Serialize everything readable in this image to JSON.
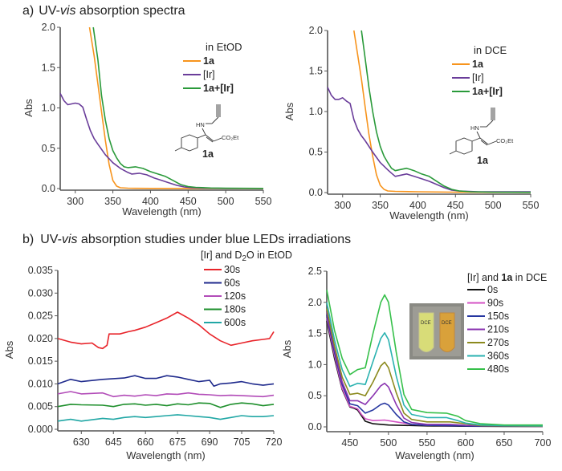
{
  "section_a_label": "a)",
  "section_a_title_pre": "UV-",
  "section_a_title_italic": "vis",
  "section_a_title_post": " absorption spectra",
  "section_b_label": "b)",
  "section_b_title_pre": "UV-",
  "section_b_title_italic": "vis",
  "section_b_title_post": " absorption studies under blue LEDs irradiations",
  "structure": {
    "label": "1a",
    "nh": "HN",
    "ester": "CO₂Et"
  },
  "inset_photo": {
    "tube_left_label": "DCE",
    "tube_right_label": "DCE",
    "tube_left_color": "#d8dc78",
    "tube_right_color": "#d9a13a"
  },
  "chart_data": [
    {
      "id": "a-left",
      "type": "line",
      "title": "",
      "legend_title": "in EtOD",
      "xlabel": "Wavelength (nm)",
      "ylabel": "Abs",
      "xlim": [
        280,
        550
      ],
      "ylim": [
        0,
        2.0
      ],
      "xticks": [
        300,
        350,
        400,
        450,
        500,
        550
      ],
      "yticks": [
        0.0,
        0.5,
        1.0,
        1.5,
        2.0
      ],
      "ytick_labels": [
        "0.0",
        "0.5",
        "1.0",
        "1.5",
        "2.0"
      ],
      "legend_position": "top-right",
      "series": [
        {
          "name": "1a",
          "bold": true,
          "color": "#f7941d",
          "x": [
            319,
            325,
            330,
            335,
            340,
            345,
            350,
            355,
            360,
            370,
            380,
            400,
            450,
            500,
            550
          ],
          "y": [
            2.0,
            1.65,
            1.3,
            0.95,
            0.6,
            0.3,
            0.1,
            0.03,
            0.01,
            0.005,
            0.003,
            0.002,
            0.001,
            0.001,
            0.0
          ]
        },
        {
          "name": "[Ir]",
          "bold": false,
          "color": "#6a3d9a",
          "x": [
            280,
            285,
            290,
            295,
            300,
            305,
            310,
            315,
            320,
            325,
            330,
            340,
            350,
            360,
            370,
            375,
            385,
            395,
            405,
            415,
            425,
            435,
            445,
            455,
            470,
            500,
            550
          ],
          "y": [
            1.18,
            1.09,
            1.04,
            1.05,
            1.06,
            1.05,
            1.01,
            0.86,
            0.72,
            0.62,
            0.55,
            0.42,
            0.32,
            0.25,
            0.2,
            0.18,
            0.19,
            0.17,
            0.13,
            0.1,
            0.07,
            0.04,
            0.02,
            0.01,
            0.005,
            0.002,
            0.002
          ]
        },
        {
          "name": "1a+[Ir]",
          "bold": true,
          "color": "#2a9a3a",
          "x": [
            324,
            330,
            335,
            340,
            345,
            350,
            355,
            360,
            365,
            370,
            380,
            390,
            400,
            410,
            420,
            430,
            440,
            450,
            460,
            480,
            500,
            550
          ],
          "y": [
            2.0,
            1.6,
            1.15,
            0.85,
            0.62,
            0.47,
            0.38,
            0.31,
            0.27,
            0.26,
            0.27,
            0.25,
            0.21,
            0.18,
            0.15,
            0.1,
            0.05,
            0.025,
            0.015,
            0.007,
            0.004,
            0.002
          ]
        }
      ]
    },
    {
      "id": "a-right",
      "type": "line",
      "title": "",
      "legend_title": "in DCE",
      "xlabel": "Wavelength (nm)",
      "ylabel": "Abs",
      "xlim": [
        280,
        550
      ],
      "ylim": [
        0,
        2.0
      ],
      "xticks": [
        300,
        350,
        400,
        450,
        500,
        550
      ],
      "yticks": [
        0.0,
        0.5,
        1.0,
        1.5,
        2.0
      ],
      "ytick_labels": [
        "0.0",
        "0.5",
        "1.0",
        "1.5",
        "2.0"
      ],
      "legend_position": "top-right",
      "series": [
        {
          "name": "1a",
          "bold": true,
          "color": "#f7941d",
          "x": [
            315,
            320,
            325,
            330,
            335,
            340,
            345,
            350,
            355,
            360,
            370,
            400,
            450,
            500,
            550
          ],
          "y": [
            2.0,
            1.7,
            1.4,
            1.05,
            0.72,
            0.45,
            0.22,
            0.09,
            0.04,
            0.02,
            0.015,
            0.01,
            0.005,
            0.003,
            0.002
          ]
        },
        {
          "name": "[Ir]",
          "bold": false,
          "color": "#6a3d9a",
          "x": [
            280,
            285,
            290,
            295,
            300,
            305,
            310,
            315,
            320,
            325,
            330,
            340,
            350,
            360,
            365,
            370,
            375,
            385,
            395,
            405,
            415,
            425,
            435,
            445,
            455,
            480,
            500,
            550
          ],
          "y": [
            1.3,
            1.2,
            1.15,
            1.15,
            1.17,
            1.13,
            1.1,
            0.9,
            0.78,
            0.7,
            0.64,
            0.5,
            0.37,
            0.28,
            0.24,
            0.2,
            0.21,
            0.23,
            0.2,
            0.17,
            0.14,
            0.1,
            0.06,
            0.03,
            0.02,
            0.01,
            0.01,
            0.01
          ]
        },
        {
          "name": "1a+[Ir]",
          "bold": true,
          "color": "#2a9a3a",
          "x": [
            325,
            330,
            335,
            340,
            345,
            350,
            355,
            360,
            365,
            370,
            375,
            385,
            395,
            405,
            415,
            425,
            435,
            445,
            455,
            470,
            500,
            550
          ],
          "y": [
            2.0,
            1.65,
            1.3,
            1.0,
            0.75,
            0.57,
            0.45,
            0.37,
            0.3,
            0.27,
            0.28,
            0.3,
            0.27,
            0.23,
            0.2,
            0.14,
            0.08,
            0.04,
            0.02,
            0.01,
            0.005,
            0.003
          ]
        }
      ]
    },
    {
      "id": "b-left",
      "type": "line",
      "title": "",
      "legend_title_pre": "[Ir] and D",
      "legend_title_sub": "2",
      "legend_title_post": "O in EtOD",
      "xlabel": "Wavelength (nm)",
      "ylabel": "Abs",
      "xlim": [
        619,
        720
      ],
      "ylim": [
        0,
        0.035
      ],
      "xticks": [
        630,
        645,
        660,
        675,
        690,
        705,
        720
      ],
      "yticks": [
        0.0,
        0.005,
        0.01,
        0.015,
        0.02,
        0.025,
        0.03,
        0.035
      ],
      "ytick_labels": [
        "0.000",
        "0.005",
        "0.010",
        "0.015",
        "0.020",
        "0.025",
        "0.030",
        "0.035"
      ],
      "legend_position": "top-right",
      "series": [
        {
          "name": "30s",
          "color": "#e8242a",
          "x": [
            619,
            625,
            630,
            635,
            638,
            640,
            642,
            643,
            648,
            652,
            655,
            660,
            665,
            670,
            675,
            680,
            685,
            690,
            695,
            700,
            705,
            710,
            715,
            718,
            720
          ],
          "y": [
            0.02,
            0.0192,
            0.0188,
            0.019,
            0.018,
            0.0178,
            0.0185,
            0.021,
            0.021,
            0.0215,
            0.0218,
            0.0225,
            0.0235,
            0.0245,
            0.0258,
            0.0245,
            0.023,
            0.021,
            0.0195,
            0.0185,
            0.019,
            0.0195,
            0.0198,
            0.02,
            0.0215
          ]
        },
        {
          "name": "60s",
          "color": "#1f2a8c",
          "x": [
            619,
            625,
            630,
            640,
            650,
            655,
            660,
            665,
            670,
            675,
            680,
            685,
            690,
            692,
            695,
            700,
            705,
            710,
            715,
            720
          ],
          "y": [
            0.01,
            0.011,
            0.0105,
            0.011,
            0.0113,
            0.0118,
            0.0112,
            0.0112,
            0.0118,
            0.0115,
            0.011,
            0.0105,
            0.0108,
            0.0095,
            0.01,
            0.0102,
            0.0105,
            0.01,
            0.0097,
            0.01
          ]
        },
        {
          "name": "120s",
          "color": "#b24cb8",
          "x": [
            619,
            625,
            630,
            640,
            645,
            650,
            655,
            660,
            665,
            670,
            675,
            680,
            685,
            690,
            695,
            700,
            705,
            710,
            715,
            720
          ],
          "y": [
            0.0078,
            0.0083,
            0.0078,
            0.008,
            0.0072,
            0.0075,
            0.0073,
            0.0076,
            0.0074,
            0.0078,
            0.0077,
            0.008,
            0.0077,
            0.0076,
            0.0074,
            0.0075,
            0.0074,
            0.0073,
            0.0072,
            0.0075
          ]
        },
        {
          "name": "180s",
          "color": "#1e8f2c",
          "x": [
            619,
            625,
            630,
            640,
            645,
            650,
            655,
            660,
            665,
            670,
            675,
            680,
            685,
            690,
            695,
            700,
            705,
            710,
            715,
            720
          ],
          "y": [
            0.005,
            0.0055,
            0.0054,
            0.0053,
            0.005,
            0.0055,
            0.0056,
            0.0053,
            0.0055,
            0.0052,
            0.0056,
            0.0054,
            0.0058,
            0.0057,
            0.0048,
            0.0055,
            0.0058,
            0.0056,
            0.0052,
            0.0055
          ]
        },
        {
          "name": "600s",
          "color": "#21a7a5",
          "x": [
            619,
            625,
            630,
            640,
            645,
            650,
            655,
            660,
            665,
            670,
            675,
            680,
            685,
            690,
            695,
            700,
            705,
            710,
            715,
            720
          ],
          "y": [
            0.0018,
            0.0022,
            0.0018,
            0.0024,
            0.0022,
            0.0026,
            0.0028,
            0.0026,
            0.0028,
            0.003,
            0.0032,
            0.003,
            0.0028,
            0.0026,
            0.0022,
            0.0026,
            0.003,
            0.0028,
            0.0028,
            0.003
          ]
        }
      ]
    },
    {
      "id": "b-right",
      "type": "line",
      "title": "",
      "legend_title_pre": "[Ir] and ",
      "legend_title_bold": "1a",
      "legend_title_post": " in DCE",
      "xlabel": "Wavelength (nm)",
      "ylabel": "Abs",
      "xlim": [
        420,
        700
      ],
      "ylim": [
        0,
        2.5
      ],
      "xticks": [
        450,
        500,
        550,
        600,
        650,
        700
      ],
      "yticks": [
        0.0,
        0.5,
        1.0,
        1.5,
        2.0,
        2.5
      ],
      "ytick_labels": [
        "0.0",
        "0.5",
        "1.0",
        "1.5",
        "2.0",
        "2.5"
      ],
      "legend_position": "top-right",
      "series": [
        {
          "name": "0s",
          "color": "#111111",
          "x": [
            420,
            430,
            440,
            450,
            455,
            460,
            465,
            470,
            480,
            500,
            550,
            600,
            650,
            700
          ],
          "y": [
            1.7,
            1.1,
            0.6,
            0.32,
            0.3,
            0.27,
            0.18,
            0.09,
            0.05,
            0.03,
            0.015,
            0.01,
            0.008,
            0.005
          ]
        },
        {
          "name": "90s",
          "color": "#d452c4",
          "x": [
            420,
            430,
            440,
            450,
            455,
            460,
            465,
            470,
            480,
            495,
            510,
            530,
            550,
            600,
            650,
            700
          ],
          "y": [
            1.75,
            1.15,
            0.62,
            0.33,
            0.31,
            0.29,
            0.2,
            0.13,
            0.1,
            0.11,
            0.08,
            0.04,
            0.025,
            0.015,
            0.01,
            0.008
          ]
        },
        {
          "name": "150s",
          "color": "#2536a0",
          "x": [
            420,
            430,
            440,
            450,
            460,
            470,
            480,
            490,
            495,
            500,
            510,
            520,
            530,
            550,
            600,
            650,
            700
          ],
          "y": [
            1.8,
            1.2,
            0.68,
            0.37,
            0.34,
            0.22,
            0.27,
            0.36,
            0.38,
            0.35,
            0.2,
            0.08,
            0.04,
            0.025,
            0.015,
            0.01,
            0.01
          ]
        },
        {
          "name": "210s",
          "color": "#8a34b0",
          "x": [
            420,
            430,
            440,
            450,
            460,
            470,
            480,
            490,
            495,
            500,
            510,
            520,
            530,
            550,
            580,
            600,
            650,
            700
          ],
          "y": [
            1.85,
            1.25,
            0.72,
            0.42,
            0.42,
            0.36,
            0.5,
            0.66,
            0.7,
            0.64,
            0.36,
            0.14,
            0.07,
            0.04,
            0.04,
            0.025,
            0.015,
            0.01
          ]
        },
        {
          "name": "270s",
          "color": "#8c8a1e",
          "x": [
            420,
            430,
            440,
            450,
            460,
            470,
            480,
            490,
            495,
            500,
            510,
            520,
            530,
            550,
            580,
            600,
            620,
            650,
            700
          ],
          "y": [
            1.9,
            1.3,
            0.8,
            0.52,
            0.54,
            0.5,
            0.72,
            0.98,
            1.04,
            0.95,
            0.55,
            0.22,
            0.12,
            0.08,
            0.08,
            0.05,
            0.02,
            0.015,
            0.01
          ]
        },
        {
          "name": "360s",
          "color": "#2ab2b0",
          "x": [
            420,
            430,
            440,
            450,
            460,
            470,
            480,
            490,
            495,
            500,
            510,
            520,
            530,
            550,
            575,
            590,
            600,
            620,
            650,
            700
          ],
          "y": [
            2.0,
            1.4,
            0.92,
            0.65,
            0.7,
            0.68,
            1.05,
            1.42,
            1.51,
            1.4,
            0.82,
            0.35,
            0.2,
            0.15,
            0.15,
            0.1,
            0.06,
            0.03,
            0.02,
            0.015
          ]
        },
        {
          "name": "480s",
          "color": "#36c04a",
          "x": [
            420,
            430,
            440,
            450,
            460,
            470,
            480,
            490,
            495,
            500,
            510,
            520,
            530,
            550,
            575,
            590,
            600,
            620,
            650,
            700
          ],
          "y": [
            2.2,
            1.55,
            1.1,
            0.84,
            0.92,
            0.95,
            1.5,
            2.0,
            2.12,
            2.0,
            1.2,
            0.52,
            0.28,
            0.23,
            0.22,
            0.17,
            0.1,
            0.05,
            0.03,
            0.03
          ]
        }
      ]
    }
  ]
}
